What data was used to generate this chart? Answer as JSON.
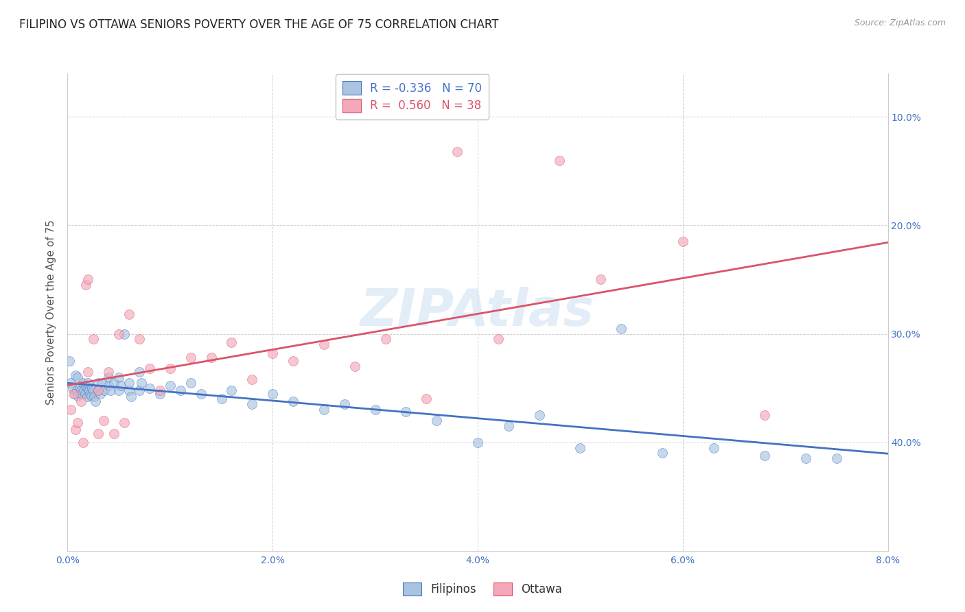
{
  "title": "FILIPINO VS OTTAWA SENIORS POVERTY OVER THE AGE OF 75 CORRELATION CHART",
  "source": "Source: ZipAtlas.com",
  "ylabel": "Seniors Poverty Over the Age of 75",
  "xlabel_ticks": [
    "0.0%",
    "2.0%",
    "4.0%",
    "6.0%",
    "8.0%"
  ],
  "xlabel_vals": [
    0.0,
    0.02,
    0.04,
    0.06,
    0.08
  ],
  "ylabel_ticks_right": [
    "40.0%",
    "30.0%",
    "20.0%",
    "10.0%"
  ],
  "ylabel_vals": [
    0.4,
    0.3,
    0.2,
    0.1
  ],
  "xlim": [
    0.0,
    0.08
  ],
  "ylim": [
    0.0,
    0.44
  ],
  "r_filipino": -0.336,
  "n_filipino": 70,
  "r_ottawa": 0.56,
  "n_ottawa": 38,
  "filipino_color": "#a8c4e0",
  "ottawa_color": "#f4a8b8",
  "line_filipino_color": "#4472c4",
  "line_ottawa_color": "#d9546a",
  "watermark": "ZIPAtlas",
  "legend_label_filipino": "Filipinos",
  "legend_label_ottawa": "Ottawa",
  "filipino_x": [
    0.0002,
    0.0003,
    0.0005,
    0.0007,
    0.0008,
    0.0009,
    0.001,
    0.001,
    0.0012,
    0.0013,
    0.0014,
    0.0015,
    0.0016,
    0.0017,
    0.0018,
    0.0019,
    0.002,
    0.002,
    0.0021,
    0.0022,
    0.0023,
    0.0024,
    0.0025,
    0.0026,
    0.0027,
    0.003,
    0.003,
    0.0032,
    0.0034,
    0.0036,
    0.004,
    0.004,
    0.0042,
    0.0045,
    0.005,
    0.005,
    0.0052,
    0.0055,
    0.006,
    0.006,
    0.0062,
    0.007,
    0.007,
    0.0072,
    0.008,
    0.009,
    0.01,
    0.011,
    0.012,
    0.013,
    0.015,
    0.016,
    0.018,
    0.02,
    0.022,
    0.025,
    0.027,
    0.03,
    0.033,
    0.036,
    0.04,
    0.043,
    0.046,
    0.05,
    0.054,
    0.058,
    0.063,
    0.068,
    0.072,
    0.075
  ],
  "filipino_y": [
    0.175,
    0.155,
    0.15,
    0.145,
    0.162,
    0.148,
    0.16,
    0.143,
    0.15,
    0.148,
    0.145,
    0.155,
    0.148,
    0.145,
    0.152,
    0.142,
    0.15,
    0.155,
    0.148,
    0.145,
    0.143,
    0.15,
    0.148,
    0.142,
    0.138,
    0.155,
    0.148,
    0.145,
    0.155,
    0.148,
    0.16,
    0.152,
    0.148,
    0.155,
    0.16,
    0.148,
    0.152,
    0.2,
    0.148,
    0.155,
    0.142,
    0.165,
    0.148,
    0.155,
    0.15,
    0.145,
    0.152,
    0.148,
    0.155,
    0.145,
    0.14,
    0.148,
    0.135,
    0.145,
    0.138,
    0.13,
    0.135,
    0.13,
    0.128,
    0.12,
    0.1,
    0.115,
    0.125,
    0.095,
    0.205,
    0.09,
    0.095,
    0.088,
    0.085,
    0.085
  ],
  "ottawa_x": [
    0.0003,
    0.0006,
    0.0008,
    0.001,
    0.0013,
    0.0015,
    0.0018,
    0.002,
    0.002,
    0.0025,
    0.003,
    0.003,
    0.0035,
    0.004,
    0.0045,
    0.005,
    0.0055,
    0.006,
    0.007,
    0.008,
    0.009,
    0.01,
    0.012,
    0.014,
    0.016,
    0.018,
    0.02,
    0.022,
    0.025,
    0.028,
    0.031,
    0.035,
    0.038,
    0.042,
    0.048,
    0.052,
    0.06,
    0.068
  ],
  "ottawa_y": [
    0.13,
    0.145,
    0.112,
    0.118,
    0.138,
    0.1,
    0.245,
    0.165,
    0.25,
    0.195,
    0.148,
    0.108,
    0.12,
    0.165,
    0.108,
    0.2,
    0.118,
    0.218,
    0.195,
    0.168,
    0.148,
    0.168,
    0.178,
    0.178,
    0.192,
    0.158,
    0.182,
    0.175,
    0.19,
    0.17,
    0.195,
    0.14,
    0.368,
    0.195,
    0.36,
    0.25,
    0.285,
    0.125
  ],
  "background_color": "#ffffff",
  "grid_color": "#d0d0d0",
  "title_fontsize": 12,
  "axis_fontsize": 11,
  "tick_fontsize": 10,
  "legend_fontsize": 12,
  "marker_size": 100,
  "marker_alpha": 0.65
}
